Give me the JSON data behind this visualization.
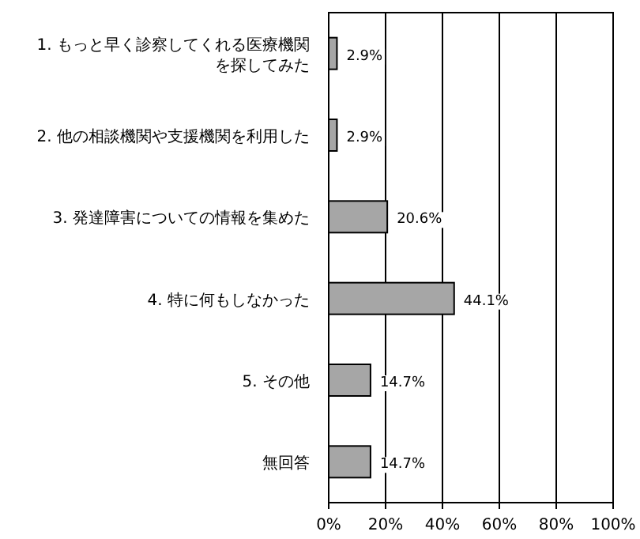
{
  "chart_data": {
    "type": "bar",
    "orientation": "horizontal",
    "categories": [
      "1. もっと早く診察してくれる医療機関を探してみた",
      "2. 他の相談機関や支援機関を利用した",
      "3. 発達障害についての情報を集めた",
      "4. 特に何もしなかった",
      "5. その他",
      "無回答"
    ],
    "values": [
      2.9,
      2.9,
      20.6,
      44.1,
      14.7,
      14.7
    ],
    "value_labels": [
      "2.9%",
      "2.9%",
      "20.6%",
      "44.1%",
      "14.7%",
      "14.7%"
    ],
    "color": "#a6a6a6",
    "xlim": [
      0,
      100
    ],
    "xticks": [
      {
        "value": 0,
        "label": "0%"
      },
      {
        "value": 20,
        "label": "20%"
      },
      {
        "value": 40,
        "label": "40%"
      },
      {
        "value": 60,
        "label": "60%"
      },
      {
        "value": 80,
        "label": "80%"
      },
      {
        "value": 100,
        "label": "100%"
      }
    ],
    "grid": "x"
  }
}
